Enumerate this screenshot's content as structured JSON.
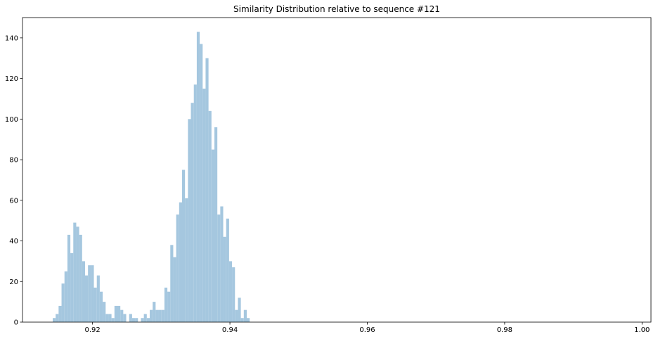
{
  "chart_data": {
    "type": "bar",
    "title": "Similarity Distribution relative to sequence #121",
    "xlabel": "",
    "ylabel": "",
    "xlim": [
      0.9098,
      1.0013
    ],
    "ylim": [
      0,
      150
    ],
    "x_ticks": [
      0.92,
      0.94,
      0.96,
      0.98,
      1.0
    ],
    "x_tick_labels": [
      "0.92",
      "0.94",
      "0.96",
      "0.98",
      "1.00"
    ],
    "y_ticks": [
      0,
      20,
      40,
      60,
      80,
      100,
      120,
      140
    ],
    "y_tick_labels": [
      "0",
      "20",
      "40",
      "60",
      "80",
      "100",
      "120",
      "140"
    ],
    "bar_color": "#a5c7df",
    "bin_start": 0.9142,
    "bin_width": 0.000428,
    "values": [
      2,
      4,
      8,
      19,
      25,
      43,
      34,
      49,
      47,
      43,
      30,
      23,
      28,
      28,
      17,
      23,
      15,
      10,
      4,
      4,
      2,
      8,
      8,
      6,
      4,
      0,
      4,
      2,
      2,
      0,
      2,
      4,
      2,
      6,
      10,
      6,
      6,
      6,
      17,
      15,
      38,
      32,
      53,
      59,
      75,
      61,
      100,
      108,
      117,
      143,
      137,
      115,
      130,
      104,
      85,
      96,
      53,
      57,
      42,
      51,
      30,
      27,
      6,
      12,
      2,
      6,
      2,
      0,
      0,
      0,
      0,
      0,
      0,
      0,
      0,
      0,
      0,
      0,
      0,
      0,
      0,
      0,
      0,
      0,
      0,
      0,
      0,
      0,
      0,
      0,
      0,
      0,
      0,
      0,
      0,
      0,
      0,
      0,
      0,
      0,
      0,
      0,
      0,
      0,
      0,
      0,
      0,
      0,
      0,
      0,
      0,
      0,
      0,
      0,
      0,
      0,
      0,
      0,
      0,
      0,
      0,
      0,
      0,
      0,
      0,
      0,
      0,
      0,
      0,
      0,
      0,
      0,
      0,
      0,
      0,
      0,
      0,
      0,
      0,
      0,
      0,
      0,
      0,
      0,
      0,
      0,
      0,
      0,
      0,
      0,
      0,
      0,
      0,
      0,
      0,
      0,
      0,
      0,
      0,
      0,
      0,
      0,
      0,
      0,
      0,
      0,
      0,
      0,
      0,
      0,
      0,
      0,
      0,
      0,
      0,
      0,
      0,
      0,
      0,
      0,
      0,
      0,
      0,
      0,
      0,
      0,
      0,
      0,
      0,
      0,
      0,
      0,
      0,
      0,
      0,
      0,
      0,
      0,
      0,
      0,
      0,
      0,
      0,
      0,
      0,
      0,
      2
    ]
  }
}
